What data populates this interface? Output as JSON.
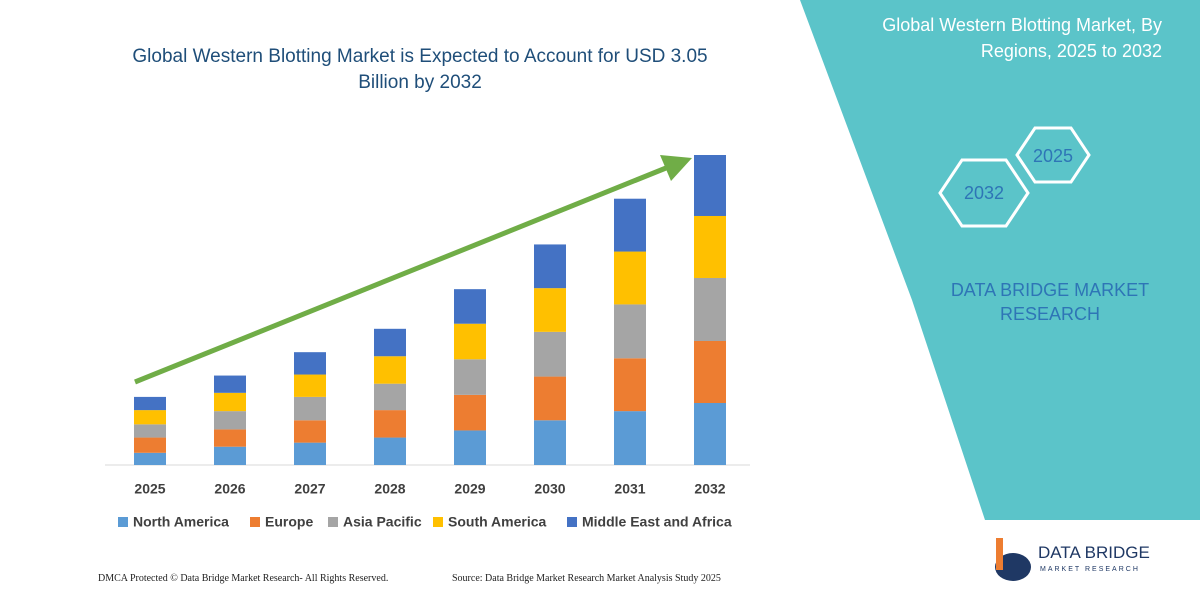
{
  "chart_data": {
    "type": "stacked_bar",
    "title": "Global Western Blotting Market is Expected to Account for USD 3.05 Billion by 2032",
    "categories": [
      "2025",
      "2026",
      "2027",
      "2028",
      "2029",
      "2030",
      "2031",
      "2032"
    ],
    "series": [
      {
        "name": "North America",
        "color": "#5b9bd5",
        "values": [
          0.12,
          0.18,
          0.22,
          0.27,
          0.34,
          0.44,
          0.53,
          0.61
        ]
      },
      {
        "name": "Europe",
        "color": "#ed7d31",
        "values": [
          0.15,
          0.17,
          0.22,
          0.27,
          0.35,
          0.43,
          0.52,
          0.61
        ]
      },
      {
        "name": "Asia Pacific",
        "color": "#a5a5a5",
        "values": [
          0.13,
          0.18,
          0.23,
          0.26,
          0.35,
          0.44,
          0.53,
          0.62
        ]
      },
      {
        "name": "South America",
        "color": "#ffc000",
        "values": [
          0.14,
          0.18,
          0.22,
          0.27,
          0.35,
          0.43,
          0.52,
          0.61
        ]
      },
      {
        "name": "Middle East and Africa",
        "color": "#4472c4",
        "values": [
          0.13,
          0.17,
          0.22,
          0.27,
          0.34,
          0.43,
          0.52,
          0.6
        ]
      }
    ],
    "legend": "bottom"
  },
  "panel": {
    "title": "Global Western Blotting Market, By Regions, 2025 to 2032",
    "hex_top": "2025",
    "hex_bottom": "2032",
    "brand": "DATA BRIDGE MARKET RESEARCH"
  },
  "footer": {
    "left": "DMCA Protected © Data Bridge Market Research-  All Rights Reserved.",
    "right": "Source: Data Bridge Market Research  Market Analysis Study 2025"
  },
  "logo": {
    "name": "DATA BRIDGE",
    "tagline": "MARKET RESEARCH"
  }
}
